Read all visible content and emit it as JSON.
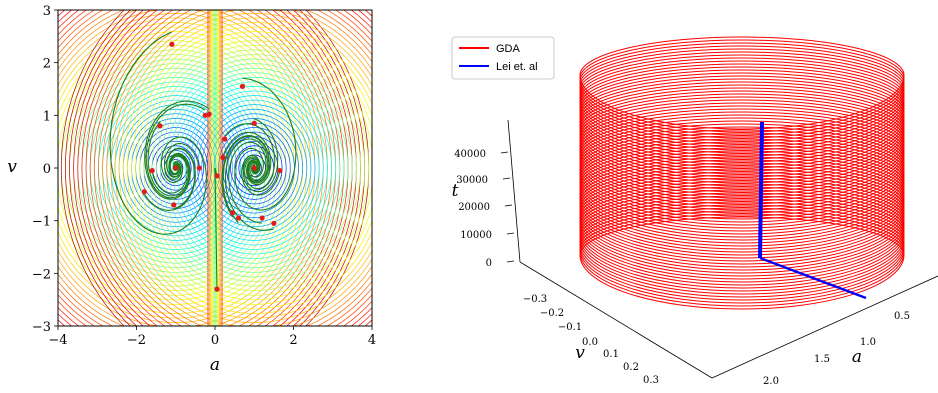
{
  "chart_data": [
    {
      "type": "contour",
      "xlabel": "a",
      "ylabel": "v",
      "xlim": [
        -4,
        4
      ],
      "ylim": [
        -3,
        3
      ],
      "xticks": [
        "−4",
        "−2",
        "0",
        "2",
        "4"
      ],
      "xtick_values": [
        -4,
        -2,
        0,
        2,
        4
      ],
      "yticks": [
        "−3",
        "−2",
        "−1",
        "0",
        "1",
        "2",
        "3"
      ],
      "ytick_values": [
        -3,
        -2,
        -1,
        0,
        1,
        2,
        3
      ],
      "colormap": "jet",
      "trajectory_color": "#1f7f1f",
      "point_color": "#e31a1c",
      "stationary_points": [
        [
          -1,
          0
        ],
        [
          1,
          0
        ]
      ],
      "initial_points": [
        [
          -1.1,
          2.35
        ],
        [
          0.7,
          1.55
        ],
        [
          -1.4,
          0.8
        ],
        [
          1.0,
          0.85
        ],
        [
          -0.25,
          1.0
        ],
        [
          -0.15,
          1.02
        ],
        [
          0.25,
          0.55
        ],
        [
          0.2,
          0.2
        ],
        [
          -0.4,
          0.0
        ],
        [
          0.05,
          -0.15
        ],
        [
          -1.6,
          -0.05
        ],
        [
          1.65,
          -0.05
        ],
        [
          -1.8,
          -0.45
        ],
        [
          -1.05,
          -0.7
        ],
        [
          0.45,
          -0.85
        ],
        [
          0.6,
          -0.95
        ],
        [
          1.2,
          -0.95
        ],
        [
          1.5,
          -1.05
        ],
        [
          0.05,
          -2.3
        ]
      ]
    },
    {
      "type": "line3d",
      "xlabel": "a",
      "ylabel": "v",
      "zlabel": "t",
      "xticks": [
        "0.5",
        "1.0",
        "1.5",
        "2.0"
      ],
      "yticks": [
        "−0.3",
        "−0.2",
        "−0.1",
        "0.0",
        "0.1",
        "0.2",
        "0.3"
      ],
      "zticks": [
        "0",
        "10000",
        "20000",
        "30000",
        "40000"
      ],
      "series": [
        {
          "name": "GDA",
          "color": "#ff0000",
          "description_values": {
            "t_max": 48000
          }
        },
        {
          "name": "Lei et. al",
          "color": "#0000ff",
          "description_values": {
            "t_max": 45000
          }
        }
      ]
    }
  ]
}
